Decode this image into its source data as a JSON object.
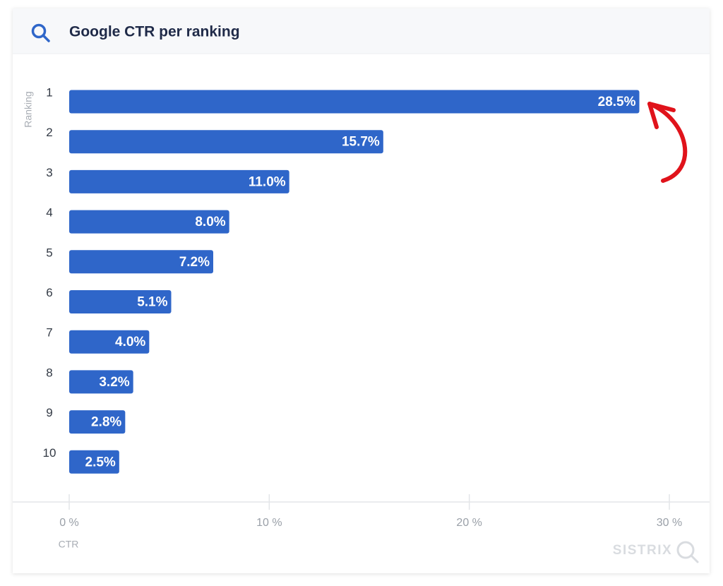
{
  "chart_data": {
    "type": "bar",
    "orientation": "horizontal",
    "title": "Google CTR per ranking",
    "y_label": "Ranking",
    "x_label": "CTR",
    "watermark": "SISTRIX",
    "categories": [
      "1",
      "2",
      "3",
      "4",
      "5",
      "6",
      "7",
      "8",
      "9",
      "10"
    ],
    "values": [
      28.5,
      15.7,
      11.0,
      8.0,
      7.2,
      5.1,
      4.0,
      3.2,
      2.8,
      2.5
    ],
    "value_labels": [
      "28.5%",
      "15.7%",
      "11.0%",
      "8.0%",
      "7.2%",
      "5.1%",
      "4.0%",
      "3.2%",
      "2.8%",
      "2.5%"
    ],
    "color": "#2f66c9",
    "xlim": [
      0,
      30
    ],
    "xticks": [
      {
        "value": 0,
        "label": "0 %"
      },
      {
        "value": 10,
        "label": "10 %"
      },
      {
        "value": 20,
        "label": "20 %"
      },
      {
        "value": 30,
        "label": "30 %"
      }
    ]
  }
}
